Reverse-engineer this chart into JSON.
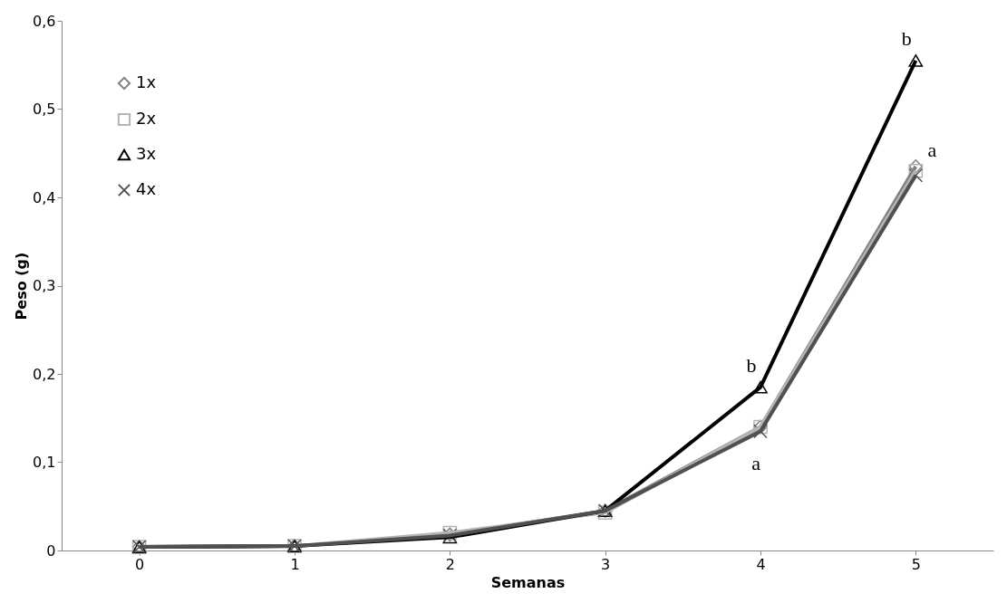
{
  "chart_data": {
    "type": "line",
    "xlabel": "Semanas",
    "ylabel": "Peso (g)",
    "categories": [
      "0",
      "1",
      "2",
      "3",
      "4",
      "5"
    ],
    "series": [
      {
        "name": "1x",
        "color": "#808080",
        "marker": "diamond",
        "values": [
          0.004,
          0.005,
          0.018,
          0.045,
          0.14,
          0.435
        ]
      },
      {
        "name": "2x",
        "color": "#b4b4b4",
        "marker": "square",
        "values": [
          0.004,
          0.005,
          0.02,
          0.043,
          0.14,
          0.43
        ]
      },
      {
        "name": "3x",
        "color": "#000000",
        "marker": "triangle",
        "values": [
          0.004,
          0.005,
          0.015,
          0.045,
          0.185,
          0.555
        ]
      },
      {
        "name": "4x",
        "color": "#505050",
        "marker": "cross",
        "values": [
          0.004,
          0.005,
          0.017,
          0.045,
          0.135,
          0.425
        ]
      }
    ],
    "ylim": [
      0,
      0.6
    ],
    "yticks": [
      {
        "value": 0,
        "label": "0"
      },
      {
        "value": 0.1,
        "label": "0,1"
      },
      {
        "value": 0.2,
        "label": "0,2"
      },
      {
        "value": 0.3,
        "label": "0,3"
      },
      {
        "value": 0.4,
        "label": "0,4"
      },
      {
        "value": 0.5,
        "label": "0,5"
      },
      {
        "value": 0.6,
        "label": "0,6"
      }
    ],
    "grid": false,
    "legend": "top left",
    "line_style": "solid",
    "annotations": [
      {
        "text": "b",
        "x": "5",
        "y": 0.555
      },
      {
        "text": "a",
        "x": "5",
        "y": 0.435
      },
      {
        "text": "b",
        "x": "4",
        "y": 0.185
      },
      {
        "text": "a",
        "x": "4",
        "y": 0.135
      }
    ]
  }
}
